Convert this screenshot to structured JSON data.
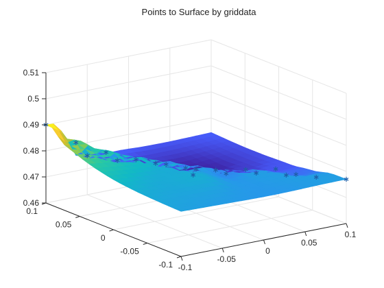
{
  "chart_data": {
    "type": "surface",
    "title": "Points to Surface by griddata",
    "xlabel": "",
    "ylabel": "",
    "zlabel": "",
    "x_ticks": [
      "-0.1",
      "-0.05",
      "0",
      "0.05",
      "0.1"
    ],
    "x_tick_values": [
      -0.1,
      -0.05,
      0,
      0.05,
      0.1
    ],
    "y_ticks": [
      "-0.1",
      "-0.05",
      "0",
      "0.05",
      "0.1"
    ],
    "y_tick_values": [
      -0.1,
      -0.05,
      0,
      0.05,
      0.1
    ],
    "z_ticks": [
      "0.46",
      "0.47",
      "0.48",
      "0.49",
      "0.5",
      "0.51"
    ],
    "z_tick_values": [
      0.46,
      0.47,
      0.48,
      0.49,
      0.5,
      0.51
    ],
    "xlim": [
      -0.1,
      0.1
    ],
    "ylim": [
      -0.1,
      0.1
    ],
    "zlim": [
      0.46,
      0.51
    ],
    "grid": true,
    "colormap": "parula",
    "marker": "*",
    "marker_color": "#1f5fa8",
    "points": [
      {
        "x": -0.1,
        "y": 0.1,
        "z": 0.49
      },
      {
        "x": -0.08,
        "y": 0.08,
        "z": 0.484
      },
      {
        "x": -0.06,
        "y": 0.06,
        "z": 0.481
      },
      {
        "x": -0.04,
        "y": 0.04,
        "z": 0.479
      },
      {
        "x": -0.02,
        "y": 0.02,
        "z": 0.478
      },
      {
        "x": 0.0,
        "y": 0.0,
        "z": 0.477
      },
      {
        "x": 0.02,
        "y": -0.02,
        "z": 0.476
      },
      {
        "x": 0.04,
        "y": -0.04,
        "z": 0.477
      },
      {
        "x": 0.06,
        "y": -0.06,
        "z": 0.477
      },
      {
        "x": 0.08,
        "y": -0.08,
        "z": 0.477
      },
      {
        "x": 0.1,
        "y": -0.1,
        "z": 0.477
      },
      {
        "x": -0.05,
        "y": 0.1,
        "z": 0.475
      },
      {
        "x": -0.03,
        "y": 0.08,
        "z": 0.474
      },
      {
        "x": 0.0,
        "y": 0.06,
        "z": 0.473
      },
      {
        "x": 0.02,
        "y": 0.04,
        "z": 0.472
      },
      {
        "x": 0.04,
        "y": 0.02,
        "z": 0.472
      },
      {
        "x": 0.06,
        "y": 0.0,
        "z": 0.473
      },
      {
        "x": 0.08,
        "y": -0.02,
        "z": 0.474
      },
      {
        "x": 0.08,
        "y": -0.05,
        "z": 0.475
      },
      {
        "x": -0.02,
        "y": -0.02,
        "z": 0.478
      }
    ]
  }
}
